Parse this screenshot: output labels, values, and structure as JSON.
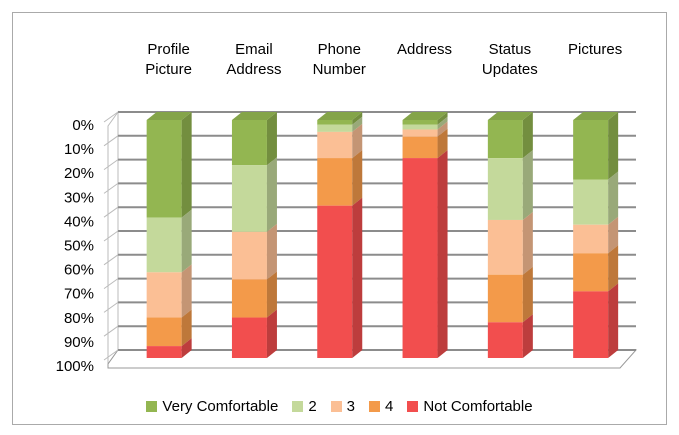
{
  "chart_data": {
    "type": "bar3d_stacked_percent",
    "categories": [
      "Profile Picture",
      "Email Address",
      "Phone Number",
      "Address",
      "Status Updates",
      "Pictures"
    ],
    "series": [
      {
        "name": "Very Comfortable",
        "color": "#93b651",
        "values": [
          41,
          19,
          2,
          2,
          16,
          25
        ]
      },
      {
        "name": "2",
        "color": "#c4d99b",
        "values": [
          23,
          28,
          3,
          2,
          26,
          19
        ]
      },
      {
        "name": "3",
        "color": "#fbbf95",
        "values": [
          19,
          20,
          11,
          3,
          23,
          12
        ]
      },
      {
        "name": "4",
        "color": "#f39a4a",
        "values": [
          12,
          16,
          20,
          9,
          20,
          16
        ]
      },
      {
        "name": "Not Comfortable",
        "color": "#f24e4e",
        "values": [
          5,
          17,
          64,
          84,
          15,
          28
        ]
      }
    ],
    "ylim": [
      0,
      100
    ],
    "y_inverted": true,
    "yticks": [
      {
        "value": 0,
        "label": "0%"
      },
      {
        "value": 10,
        "label": "10%"
      },
      {
        "value": 20,
        "label": "20%"
      },
      {
        "value": 30,
        "label": "30%"
      },
      {
        "value": 40,
        "label": "40%"
      },
      {
        "value": 50,
        "label": "50%"
      },
      {
        "value": 60,
        "label": "60%"
      },
      {
        "value": 70,
        "label": "70%"
      },
      {
        "value": 80,
        "label": "80%"
      },
      {
        "value": 90,
        "label": "90%"
      },
      {
        "value": 100,
        "label": "100%"
      }
    ],
    "grid": true,
    "legend": "bottom"
  }
}
